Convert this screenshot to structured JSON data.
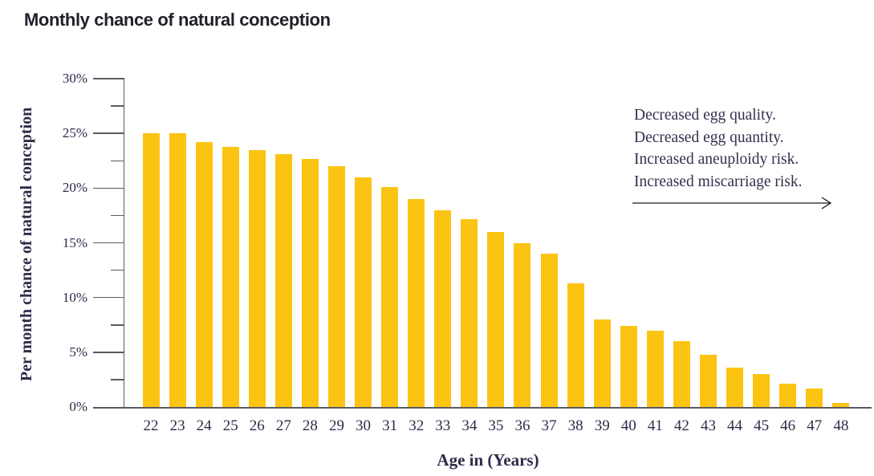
{
  "title": "Monthly chance of natural conception",
  "annotation": {
    "lines": [
      "Decreased egg quality.",
      "Decreased egg quantity.",
      "Increased aneuploidy risk.",
      "Increased miscarriage risk."
    ]
  },
  "chart_data": {
    "type": "bar",
    "title": "Monthly chance of natural conception",
    "xlabel": "Age in (Years)",
    "ylabel": "Per month chance of natural conception",
    "categories": [
      22,
      23,
      24,
      25,
      26,
      27,
      28,
      29,
      30,
      31,
      32,
      33,
      34,
      35,
      36,
      37,
      38,
      39,
      40,
      41,
      42,
      43,
      44,
      45,
      46,
      47,
      48
    ],
    "values": [
      25,
      25,
      24.2,
      23.8,
      23.5,
      23.1,
      22.7,
      22,
      21,
      20.1,
      19,
      18,
      17.2,
      16,
      15,
      14,
      11.3,
      8,
      7.4,
      7,
      6,
      4.8,
      3.6,
      3,
      2.1,
      1.7,
      0.4
    ],
    "value_unit": "%",
    "ylim": [
      0,
      30
    ],
    "y_ticks": [
      {
        "value": 30,
        "label": "30%"
      },
      {
        "value": 25,
        "label": "25%"
      },
      {
        "value": 20,
        "label": "20%"
      },
      {
        "value": 15,
        "label": "15%"
      },
      {
        "value": 10,
        "label": "10%"
      },
      {
        "value": 5,
        "label": "5%"
      },
      {
        "value": 0,
        "label": "0%"
      }
    ],
    "y_minor_ticks": [
      27.5,
      22.5,
      17.5,
      12.5,
      7.5,
      2.5
    ],
    "grid": false,
    "legend": "none",
    "bar_color": "#FCC412"
  },
  "colors": {
    "bar": "#FCC412",
    "axis": "#5a5a62",
    "tick_text": "#2c2c4a",
    "title_text": "#21212b",
    "annotation_text": "#31314d",
    "arrow": "#1a1a1a"
  }
}
